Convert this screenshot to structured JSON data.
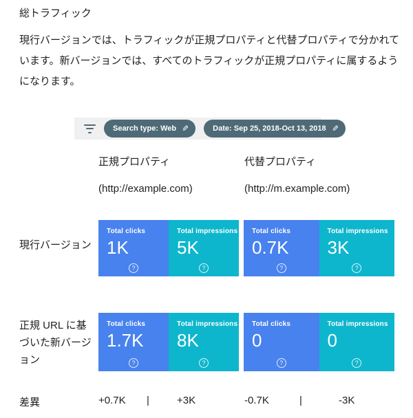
{
  "page": {
    "title": "総トラフィック",
    "description": "現行バージョンでは、トラフィックが正規プロパティと代替プロパティで分かれています。新バージョンでは、すべてのトラフィックが正規プロパティに属するようになります。"
  },
  "filter_bar": {
    "chips": [
      {
        "label": "Search type: Web"
      },
      {
        "label": "Date: Sep 25, 2018-Oct 13, 2018"
      }
    ]
  },
  "columns": [
    {
      "title": "正規プロパティ",
      "url": "(http://example.com)"
    },
    {
      "title": "代替プロパティ",
      "url": "(http://m.example.com)"
    }
  ],
  "rows": [
    {
      "label": "現行バージョン",
      "cells": [
        {
          "metric": "Total clicks",
          "value": "1K"
        },
        {
          "metric": "Total impressions",
          "value": "5K"
        },
        {
          "metric": "Total clicks",
          "value": "0.7K"
        },
        {
          "metric": "Total impressions",
          "value": "3K"
        }
      ]
    },
    {
      "label": "正規 URL に基づいた新バージョン",
      "cells": [
        {
          "metric": "Total clicks",
          "value": "1.7K"
        },
        {
          "metric": "Total impressions",
          "value": "8K"
        },
        {
          "metric": "Total clicks",
          "value": "0"
        },
        {
          "metric": "Total impressions",
          "value": "0"
        }
      ]
    }
  ],
  "diff": {
    "label": "差異",
    "separator": "|",
    "values": [
      "+0.7K",
      "+3K",
      "-0.7K",
      "-3K"
    ]
  },
  "icons": {
    "edit": "✎",
    "help": "?"
  },
  "colors": {
    "clicks_blue": "#4882ee",
    "impressions_teal": "#0eb6cd",
    "chip_slate": "#4e6a77",
    "filter_bar_bg": "#f0f0f0"
  }
}
